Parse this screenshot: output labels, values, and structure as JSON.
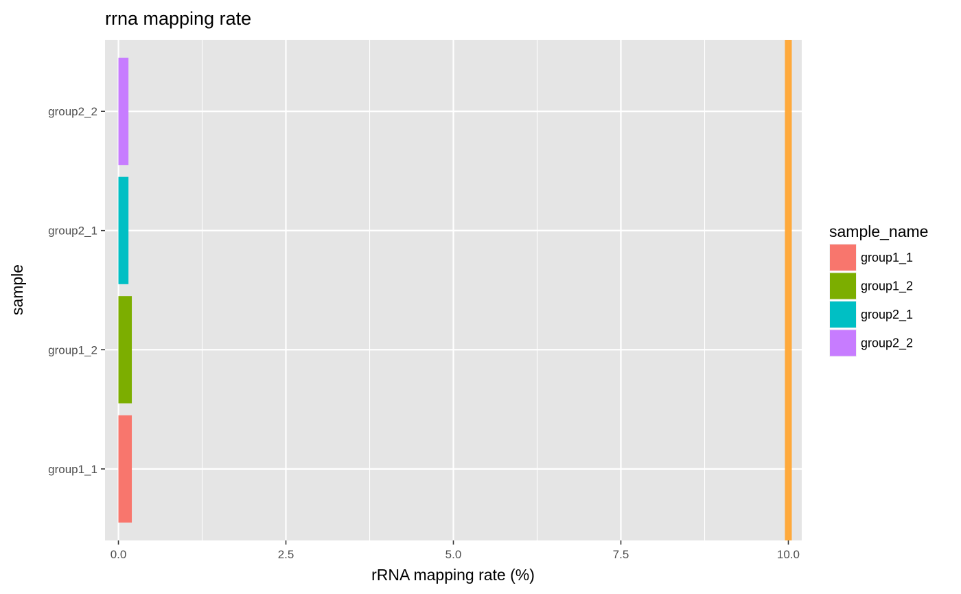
{
  "chart_data": {
    "type": "bar",
    "orientation": "horizontal",
    "title": "rrna mapping rate",
    "xlabel": "rRNA mapping rate (%)",
    "ylabel": "sample",
    "categories": [
      "group1_1",
      "group1_2",
      "group2_1",
      "group2_2"
    ],
    "values": [
      0.2,
      0.2,
      0.15,
      0.15
    ],
    "colors": [
      "#F8766D",
      "#7CAE00",
      "#00BFC4",
      "#C77CFF"
    ],
    "xlim": [
      -0.2,
      10.2
    ],
    "xticks": [
      0.0,
      2.5,
      5.0,
      7.5,
      10.0
    ],
    "xtick_labels": [
      "0.0",
      "2.5",
      "5.0",
      "7.5",
      "10.0"
    ],
    "reference_line": {
      "x": 10.0,
      "color": "#FFA533"
    },
    "grid": true,
    "panel_background": "#E5E5E5",
    "legend": {
      "title": "sample_name",
      "position": "right",
      "entries": [
        "group1_1",
        "group1_2",
        "group2_1",
        "group2_2"
      ]
    }
  }
}
